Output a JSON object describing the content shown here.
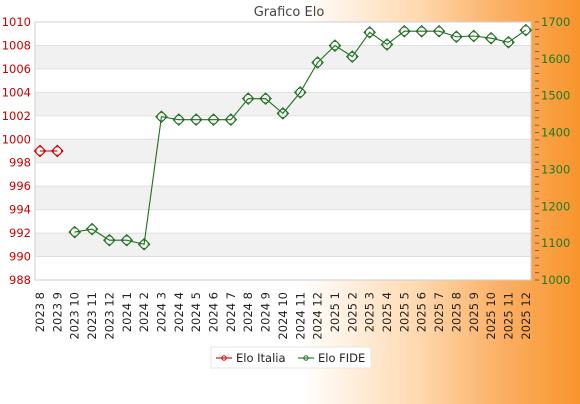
{
  "chart_data": {
    "type": "line",
    "title": "Grafico Elo",
    "categories": [
      "2023 8",
      "2023 9",
      "2023 10",
      "2023 11",
      "2023 12",
      "2024 1",
      "2024 2",
      "2024 3",
      "2024 4",
      "2024 5",
      "2024 6",
      "2024 7",
      "2024 8",
      "2024 9",
      "2024 10",
      "2024 11",
      "2024 12",
      "2025 1",
      "2025 2",
      "2025 3",
      "2025 4",
      "2025 5",
      "2025 6",
      "2025 7",
      "2025 8",
      "2025 9",
      "2025 10",
      "2025 11",
      "2025 12"
    ],
    "y_left": {
      "ylim": [
        988,
        1010
      ],
      "ticks": [
        988,
        990,
        992,
        994,
        996,
        998,
        1000,
        1002,
        1004,
        1006,
        1008,
        1010
      ],
      "color": "#cc0000"
    },
    "y_right": {
      "ylim": [
        1000,
        1700
      ],
      "ticks": [
        1000,
        1100,
        1200,
        1300,
        1400,
        1500,
        1600,
        1700
      ],
      "color": "#1f7a1f"
    },
    "series": [
      {
        "name": "Elo Italia",
        "axis": "left",
        "color": "#cc0000",
        "values": [
          999,
          999,
          null,
          null,
          null,
          null,
          null,
          null,
          null,
          null,
          null,
          null,
          null,
          null,
          null,
          null,
          null,
          null,
          null,
          null,
          null,
          null,
          null,
          null,
          null,
          null,
          null,
          null,
          null
        ]
      },
      {
        "name": "Elo FIDE",
        "axis": "right",
        "color": "#1f6f1f",
        "values": [
          null,
          null,
          1130,
          1138,
          1108,
          1108,
          1097,
          1443,
          1435,
          1435,
          1435,
          1435,
          1492,
          1492,
          1452,
          1509,
          1590,
          1636,
          1606,
          1672,
          1639,
          1675,
          1675,
          1675,
          1660,
          1662,
          1656,
          1645,
          1678
        ]
      }
    ],
    "legend_position": "bottom",
    "grid": true
  }
}
